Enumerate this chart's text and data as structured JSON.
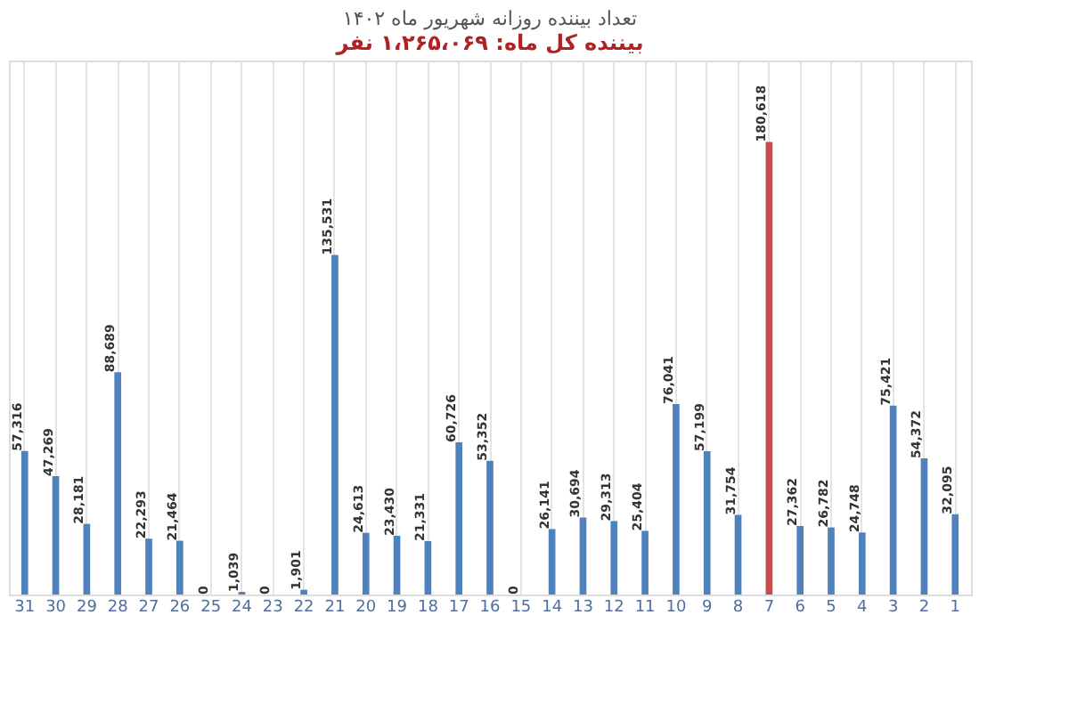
{
  "chart_data": {
    "type": "bar",
    "title": "تعداد بیننده روزانه شهریور ماه ۱۴۰۲",
    "subtitle": "بیننده کل ماه: ۱،۲۶۵،۰۶۹ نفر",
    "categories": [
      "31",
      "30",
      "29",
      "28",
      "27",
      "26",
      "25",
      "24",
      "23",
      "22",
      "21",
      "20",
      "19",
      "18",
      "17",
      "16",
      "15",
      "14",
      "13",
      "12",
      "11",
      "10",
      "9",
      "8",
      "7",
      "6",
      "5",
      "4",
      "3",
      "2",
      "1"
    ],
    "values": [
      57316,
      47269,
      28181,
      88689,
      22293,
      21464,
      0,
      1039,
      0,
      1901,
      135531,
      24613,
      23430,
      21331,
      60726,
      53352,
      0,
      26141,
      30694,
      29313,
      25404,
      76041,
      57199,
      31754,
      180618,
      27362,
      26782,
      24748,
      75421,
      54372,
      32095
    ],
    "colors": [
      "#4f81bd",
      "#4f81bd",
      "#4f81bd",
      "#4f81bd",
      "#4f81bd",
      "#4f81bd",
      "#4f81bd",
      "#4f81bd",
      "#4f81bd",
      "#4f81bd",
      "#4f81bd",
      "#4f81bd",
      "#4f81bd",
      "#4f81bd",
      "#4f81bd",
      "#4f81bd",
      "#4f81bd",
      "#4f81bd",
      "#4f81bd",
      "#4f81bd",
      "#4f81bd",
      "#4f81bd",
      "#4f81bd",
      "#4f81bd",
      "#c0504d",
      "#4f81bd",
      "#4f81bd",
      "#4f81bd",
      "#4f81bd",
      "#4f81bd",
      "#4f81bd"
    ],
    "value_labels": [
      "57,316",
      "47,269",
      "28,181",
      "88,689",
      "22,293",
      "21,464",
      "0",
      "1,039",
      "0",
      "1,901",
      "135,531",
      "24,613",
      "23,430",
      "21,331",
      "60,726",
      "53,352",
      "0",
      "26,141",
      "30,694",
      "29,313",
      "25,404",
      "76,041",
      "57,199",
      "31,754",
      "180,618",
      "27,362",
      "26,782",
      "24,748",
      "75,421",
      "54,372",
      "32,095"
    ],
    "grid": "x"
  }
}
